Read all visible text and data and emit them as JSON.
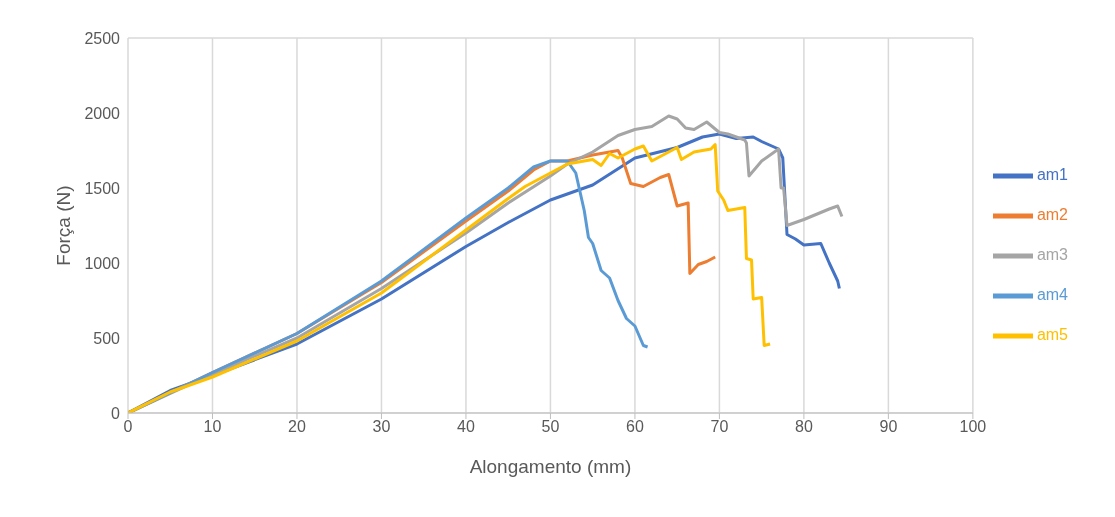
{
  "chart_data": {
    "type": "line",
    "xlabel": "Alongamento (mm)",
    "ylabel": "Força (N)",
    "xlim": [
      0,
      100
    ],
    "xticks": [
      0,
      10,
      20,
      30,
      40,
      50,
      60,
      70,
      80,
      90,
      100
    ],
    "ylim": [
      0,
      2500
    ],
    "yticks": [
      0,
      500,
      1000,
      1500,
      2000,
      2500
    ],
    "grid": true,
    "legend": "right",
    "marker": "none",
    "line_style": "solid",
    "series": [
      {
        "name": "am1",
        "color": "#4472c4",
        "x": [
          0,
          5,
          10,
          20,
          30,
          40,
          45,
          50,
          52,
          53,
          55,
          60,
          65,
          68,
          70,
          72,
          74,
          75,
          77,
          77.5,
          78,
          79,
          80,
          82,
          83,
          84,
          84.2
        ],
        "values": [
          0,
          150,
          250,
          460,
          760,
          1110,
          1270,
          1420,
          1460,
          1480,
          1520,
          1700,
          1770,
          1840,
          1860,
          1830,
          1840,
          1810,
          1760,
          1700,
          1190,
          1160,
          1120,
          1130,
          1000,
          880,
          830
        ]
      },
      {
        "name": "am2",
        "color": "#ed7d31",
        "x": [
          0,
          10,
          20,
          30,
          40,
          45,
          48,
          50,
          52,
          55,
          58,
          58.5,
          59.5,
          61,
          63,
          64,
          65,
          66.3,
          66.5,
          67.5,
          68.5,
          69.5
        ],
        "values": [
          0,
          270,
          530,
          870,
          1280,
          1480,
          1620,
          1680,
          1680,
          1720,
          1750,
          1700,
          1530,
          1510,
          1570,
          1590,
          1380,
          1400,
          930,
          990,
          1010,
          1040
        ]
      },
      {
        "name": "am3",
        "color": "#a5a5a5",
        "x": [
          0,
          10,
          20,
          30,
          40,
          45,
          50,
          52,
          55,
          58,
          60,
          62,
          64,
          65,
          66,
          67,
          68.5,
          70,
          71,
          73,
          73.2,
          73.5,
          75,
          77,
          77.3,
          77.6,
          78,
          80,
          83,
          84,
          84.5
        ],
        "values": [
          0,
          260,
          500,
          830,
          1200,
          1400,
          1580,
          1660,
          1740,
          1850,
          1890,
          1910,
          1980,
          1960,
          1900,
          1890,
          1940,
          1870,
          1860,
          1820,
          1800,
          1580,
          1680,
          1760,
          1500,
          1500,
          1250,
          1290,
          1360,
          1380,
          1310
        ]
      },
      {
        "name": "am4",
        "color": "#5b9bd5",
        "x": [
          0,
          10,
          20,
          30,
          40,
          45,
          48,
          50,
          52,
          53,
          54,
          54.5,
          55,
          56,
          57,
          58,
          59,
          60,
          61,
          61.5
        ],
        "values": [
          0,
          270,
          530,
          880,
          1300,
          1500,
          1640,
          1680,
          1680,
          1600,
          1350,
          1170,
          1130,
          950,
          900,
          750,
          630,
          580,
          450,
          440
        ]
      },
      {
        "name": "am5",
        "color": "#ffc000",
        "x": [
          0,
          5,
          10,
          20,
          30,
          40,
          45,
          47,
          48,
          50,
          52,
          55,
          56,
          57,
          58,
          60,
          61,
          62,
          64,
          65,
          65.5,
          67,
          69,
          69.5,
          69.8,
          70.5,
          71,
          73,
          73.2,
          73.8,
          74,
          75,
          75.3,
          76
        ],
        "values": [
          0,
          140,
          240,
          480,
          800,
          1220,
          1430,
          1510,
          1540,
          1600,
          1660,
          1690,
          1650,
          1730,
          1700,
          1760,
          1780,
          1680,
          1740,
          1770,
          1690,
          1740,
          1760,
          1790,
          1480,
          1420,
          1350,
          1370,
          1030,
          1020,
          760,
          770,
          450,
          460
        ]
      }
    ]
  }
}
